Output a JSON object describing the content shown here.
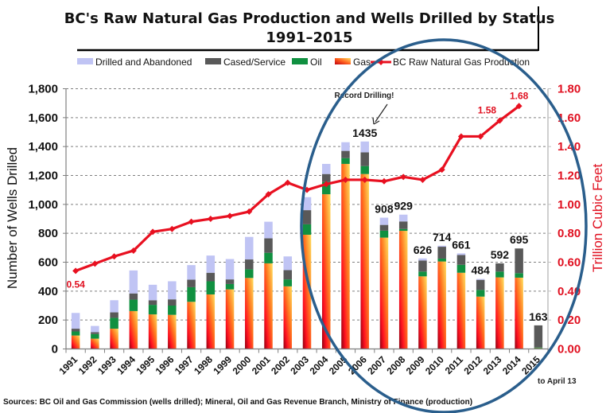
{
  "chart_data": {
    "type": "bar",
    "subtype": "stacked-bar-with-line-secondary-axis",
    "title": "BC's Raw Natural Gas Production and Wells Drilled by Status",
    "subtitle": "1991–2015",
    "xlabel": "",
    "ylabel": "Number of Wells Drilled",
    "y2label": "Trillion Cubic Feet",
    "ylim": [
      0,
      1800
    ],
    "y2lim": [
      0,
      1.8
    ],
    "yticks": [
      "0",
      "200",
      "400",
      "600",
      "800",
      "1,000",
      "1,200",
      "1,400",
      "1,600",
      "1,800"
    ],
    "y2ticks": [
      "0.00",
      "0.20",
      "0.40",
      "0.60",
      "0.80",
      "1.00",
      "1.20",
      "1.40",
      "1.60",
      "1.80"
    ],
    "grid": true,
    "legend_position": "top",
    "categories": [
      "1991",
      "1992",
      "1993",
      "1994",
      "1995",
      "1996",
      "1997",
      "1998",
      "1999",
      "2000",
      "2001",
      "2002",
      "2003",
      "2004",
      "2005",
      "2006",
      "2007",
      "2008",
      "2009",
      "2010",
      "2011",
      "2012",
      "2013",
      "2014",
      "2015"
    ],
    "series": [
      {
        "name": "Gas",
        "kind": "bar",
        "color": "#f03010",
        "values": [
          93,
          71,
          140,
          262,
          239,
          236,
          326,
          377,
          412,
          491,
          592,
          433,
          790,
          1070,
          1280,
          1210,
          770,
          817,
          502,
          605,
          527,
          362,
          495,
          493,
          5
        ]
      },
      {
        "name": "Oil",
        "kind": "bar",
        "color": "#109040",
        "values": [
          28,
          32,
          75,
          79,
          66,
          64,
          101,
          91,
          37,
          60,
          73,
          48,
          72,
          85,
          40,
          55,
          48,
          13,
          33,
          20,
          55,
          46,
          40,
          31,
          5
        ]
      },
      {
        "name": "Cased/Service",
        "kind": "bar",
        "color": "#595959",
        "values": [
          19,
          13,
          38,
          43,
          32,
          43,
          52,
          59,
          32,
          68,
          100,
          64,
          98,
          55,
          50,
          95,
          40,
          52,
          77,
          82,
          68,
          70,
          57,
          171,
          153
        ]
      },
      {
        "name": "Drilled and Abandoned",
        "kind": "bar",
        "color": "#c0c4f4",
        "values": [
          109,
          43,
          84,
          159,
          107,
          125,
          101,
          119,
          141,
          156,
          115,
          95,
          90,
          70,
          60,
          75,
          50,
          47,
          14,
          7,
          11,
          6,
          0,
          0,
          0
        ]
      },
      {
        "name": "BC Raw Natural Gas Production",
        "kind": "line",
        "axis": "right",
        "color": "#e81020",
        "values": [
          0.54,
          0.59,
          0.64,
          0.68,
          0.81,
          0.83,
          0.88,
          0.9,
          0.92,
          0.95,
          1.07,
          1.15,
          1.1,
          1.14,
          1.17,
          1.17,
          1.16,
          1.19,
          1.17,
          1.24,
          1.47,
          1.47,
          1.58,
          1.68,
          null
        ]
      }
    ],
    "bar_total_labels": [
      {
        "category": "2006",
        "text": "1435"
      },
      {
        "category": "2007",
        "text": "908"
      },
      {
        "category": "2008",
        "text": "929"
      },
      {
        "category": "2009",
        "text": "626"
      },
      {
        "category": "2010",
        "text": "714"
      },
      {
        "category": "2011",
        "text": "661"
      },
      {
        "category": "2012",
        "text": "484"
      },
      {
        "category": "2013",
        "text": "592"
      },
      {
        "category": "2014",
        "text": "695"
      },
      {
        "category": "2015",
        "text": "163"
      }
    ],
    "line_labels": [
      {
        "category": "1991",
        "text": "0.54"
      },
      {
        "category": "2013",
        "text": "1.58"
      },
      {
        "category": "2014",
        "text": "1.68"
      }
    ],
    "annotations": {
      "record": "Record Drilling!",
      "partial_year": "to April 13"
    },
    "source": "Sources: BC Oil and Gas Commission (wells drilled); Mineral, Oil and Gas Revenue Branch, Ministry of Finance (production)"
  },
  "colors": {
    "highlight_ellipse": "#2a5e8c",
    "gridline": "#7f7f7f",
    "right_axis_text": "#e01020"
  }
}
